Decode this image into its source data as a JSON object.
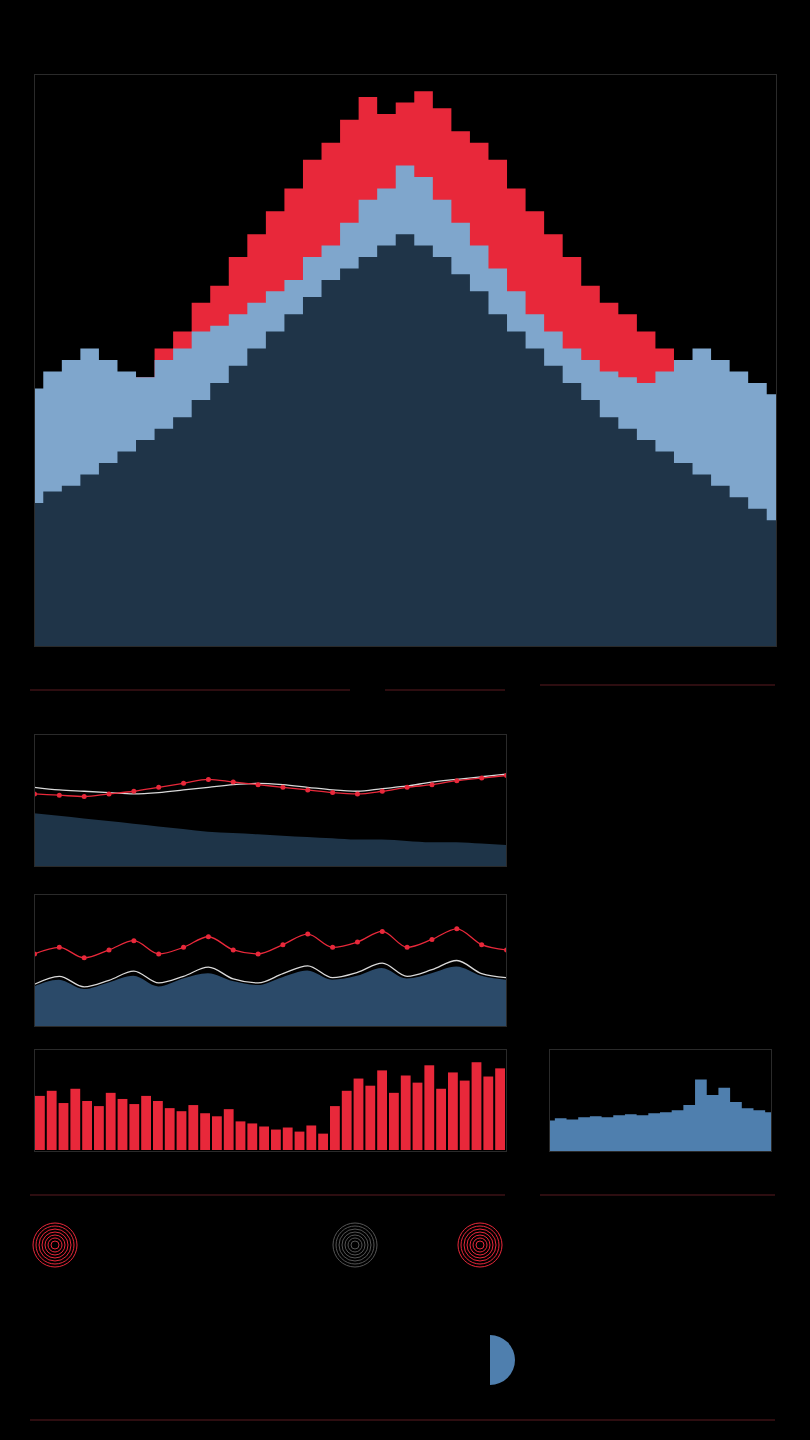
{
  "chart_data": [
    {
      "type": "area",
      "tick_labels": false,
      "x": [
        0,
        1,
        2,
        3,
        4,
        5,
        6,
        7,
        8,
        9,
        10,
        11,
        12,
        13,
        14,
        15,
        16,
        17,
        18,
        19,
        20,
        21,
        22,
        23,
        24,
        25,
        26,
        27,
        28,
        29,
        30,
        31,
        32,
        33,
        34,
        35,
        36,
        37,
        38,
        39,
        40
      ],
      "xlim": [
        0,
        40
      ],
      "ylim": [
        0,
        100
      ],
      "series": [
        {
          "color": "#e8283a",
          "values": [
            30,
            33,
            35,
            38,
            40,
            44,
            47,
            52,
            55,
            60,
            63,
            68,
            72,
            76,
            80,
            85,
            88,
            92,
            96,
            93,
            95,
            97,
            94,
            90,
            88,
            85,
            80,
            76,
            72,
            68,
            63,
            60,
            58,
            55,
            52,
            50,
            48,
            46,
            44,
            42,
            40
          ]
        },
        {
          "color": "#7fa6cc",
          "values": [
            45,
            48,
            50,
            52,
            50,
            48,
            47,
            50,
            52,
            55,
            56,
            58,
            60,
            62,
            64,
            68,
            70,
            74,
            78,
            80,
            84,
            82,
            78,
            74,
            70,
            66,
            62,
            58,
            55,
            52,
            50,
            48,
            47,
            46,
            48,
            50,
            52,
            50,
            48,
            46,
            44
          ]
        },
        {
          "color": "#1f3448",
          "values": [
            25,
            27,
            28,
            30,
            32,
            34,
            36,
            38,
            40,
            43,
            46,
            49,
            52,
            55,
            58,
            61,
            64,
            66,
            68,
            70,
            72,
            70,
            68,
            65,
            62,
            58,
            55,
            52,
            49,
            46,
            43,
            40,
            38,
            36,
            34,
            32,
            30,
            28,
            26,
            24,
            22
          ]
        }
      ]
    },
    {
      "type": "line",
      "tick_labels": false,
      "x": [
        0,
        1,
        2,
        3,
        4,
        5,
        6,
        7,
        8,
        9,
        10,
        11,
        12,
        13,
        14,
        15,
        16,
        17,
        18,
        19
      ],
      "xlim": [
        0,
        19
      ],
      "ylim": [
        0,
        100
      ],
      "series": [
        {
          "type": "area",
          "color": "#2b4a66",
          "values": [
            40,
            38,
            36,
            34,
            32,
            30,
            28,
            26,
            25,
            24,
            23,
            22,
            21,
            20,
            20,
            19,
            18,
            18,
            17,
            16
          ]
        },
        {
          "color": "#d9d9d9",
          "values": [
            60,
            58,
            57,
            56,
            55,
            56,
            58,
            60,
            62,
            63,
            62,
            60,
            58,
            57,
            59,
            61,
            64,
            66,
            68,
            70
          ]
        },
        {
          "color": "#e8283a",
          "marker": "circle",
          "values": [
            55,
            54,
            53,
            55,
            57,
            60,
            63,
            66,
            64,
            62,
            60,
            58,
            56,
            55,
            57,
            60,
            62,
            65,
            67,
            69
          ]
        }
      ]
    },
    {
      "type": "line",
      "tick_labels": false,
      "x": [
        0,
        1,
        2,
        3,
        4,
        5,
        6,
        7,
        8,
        9,
        10,
        11,
        12,
        13,
        14,
        15,
        16,
        17,
        18,
        19
      ],
      "xlim": [
        0,
        19
      ],
      "ylim": [
        0,
        100
      ],
      "series": [
        {
          "type": "area",
          "color": "#3d6a96",
          "values": [
            30,
            35,
            28,
            33,
            38,
            30,
            36,
            40,
            34,
            31,
            37,
            42,
            35,
            38,
            44,
            36,
            40,
            45,
            38,
            35
          ]
        },
        {
          "color": "#d9d9d9",
          "values": [
            32,
            38,
            30,
            35,
            42,
            33,
            38,
            45,
            36,
            33,
            40,
            46,
            37,
            41,
            48,
            38,
            43,
            50,
            40,
            37
          ]
        },
        {
          "color": "#e8283a",
          "marker": "circle",
          "values": [
            55,
            60,
            52,
            58,
            65,
            55,
            60,
            68,
            58,
            55,
            62,
            70,
            60,
            64,
            72,
            60,
            66,
            74,
            62,
            58
          ]
        }
      ]
    },
    {
      "type": "bar",
      "tick_labels": false,
      "x": [
        0,
        1,
        2,
        3,
        4,
        5,
        6,
        7,
        8,
        9,
        10,
        11,
        12,
        13,
        14,
        15,
        16,
        17,
        18,
        19,
        20,
        21,
        22,
        23,
        24,
        25,
        26,
        27,
        28,
        29,
        30,
        31,
        32,
        33,
        34,
        35,
        36,
        37,
        38,
        39
      ],
      "xlim": [
        0,
        40
      ],
      "ylim": [
        0,
        100
      ],
      "series": [
        {
          "color": "#e8283a",
          "values": [
            55,
            60,
            48,
            62,
            50,
            45,
            58,
            52,
            47,
            55,
            50,
            43,
            40,
            46,
            38,
            35,
            42,
            30,
            28,
            25,
            22,
            24,
            20,
            26,
            18,
            45,
            60,
            72,
            65,
            80,
            58,
            75,
            68,
            85,
            62,
            78,
            70,
            88,
            74,
            82
          ]
        }
      ]
    },
    {
      "type": "area",
      "tick_labels": false,
      "x": [
        0,
        1,
        2,
        3,
        4,
        5,
        6,
        7,
        8,
        9,
        10,
        11,
        12,
        13,
        14,
        15,
        16,
        17,
        18,
        19
      ],
      "xlim": [
        0,
        19
      ],
      "ylim": [
        0,
        100
      ],
      "series": [
        {
          "color": "#4f7fae",
          "values": [
            30,
            32,
            31,
            33,
            34,
            33,
            35,
            36,
            35,
            37,
            38,
            40,
            45,
            70,
            55,
            62,
            48,
            42,
            40,
            38
          ]
        }
      ]
    }
  ]
}
